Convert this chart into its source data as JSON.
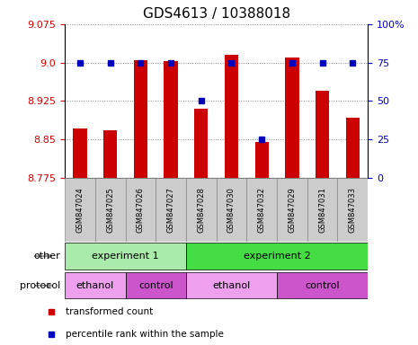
{
  "title": "GDS4613 / 10388018",
  "samples": [
    "GSM847024",
    "GSM847025",
    "GSM847026",
    "GSM847027",
    "GSM847028",
    "GSM847030",
    "GSM847032",
    "GSM847029",
    "GSM847031",
    "GSM847033"
  ],
  "transformed_count": [
    8.872,
    8.868,
    9.005,
    9.003,
    8.91,
    9.015,
    8.845,
    9.01,
    8.945,
    8.892
  ],
  "percentile_rank": [
    75,
    75,
    75,
    75,
    50,
    75,
    25,
    75,
    75,
    75
  ],
  "ylim_left": [
    8.775,
    9.075
  ],
  "ylim_right": [
    0,
    100
  ],
  "yticks_left": [
    8.775,
    8.85,
    8.925,
    9.0,
    9.075
  ],
  "yticks_right": [
    0,
    25,
    50,
    75,
    100
  ],
  "ytick_labels_right": [
    "0",
    "25",
    "50",
    "75",
    "100%"
  ],
  "bar_color": "#cc0000",
  "dot_color": "#0000bb",
  "bar_bottom": 8.775,
  "groups_other": [
    {
      "label": "experiment 1",
      "start": 0,
      "end": 4,
      "color": "#aaeaaa"
    },
    {
      "label": "experiment 2",
      "start": 4,
      "end": 10,
      "color": "#44dd44"
    }
  ],
  "groups_protocol": [
    {
      "label": "ethanol",
      "start": 0,
      "end": 2,
      "color": "#eea0ee"
    },
    {
      "label": "control",
      "start": 2,
      "end": 4,
      "color": "#cc55cc"
    },
    {
      "label": "ethanol",
      "start": 4,
      "end": 7,
      "color": "#eea0ee"
    },
    {
      "label": "control",
      "start": 7,
      "end": 10,
      "color": "#cc55cc"
    }
  ],
  "legend_items": [
    {
      "label": "transformed count",
      "color": "#cc0000"
    },
    {
      "label": "percentile rank within the sample",
      "color": "#0000bb"
    }
  ],
  "other_label": "other",
  "protocol_label": "protocol",
  "grid_color": "#888888",
  "title_fontsize": 11,
  "tick_fontsize": 8,
  "label_fontsize": 8,
  "sample_box_color": "#cccccc",
  "sample_box_edge": "#888888"
}
